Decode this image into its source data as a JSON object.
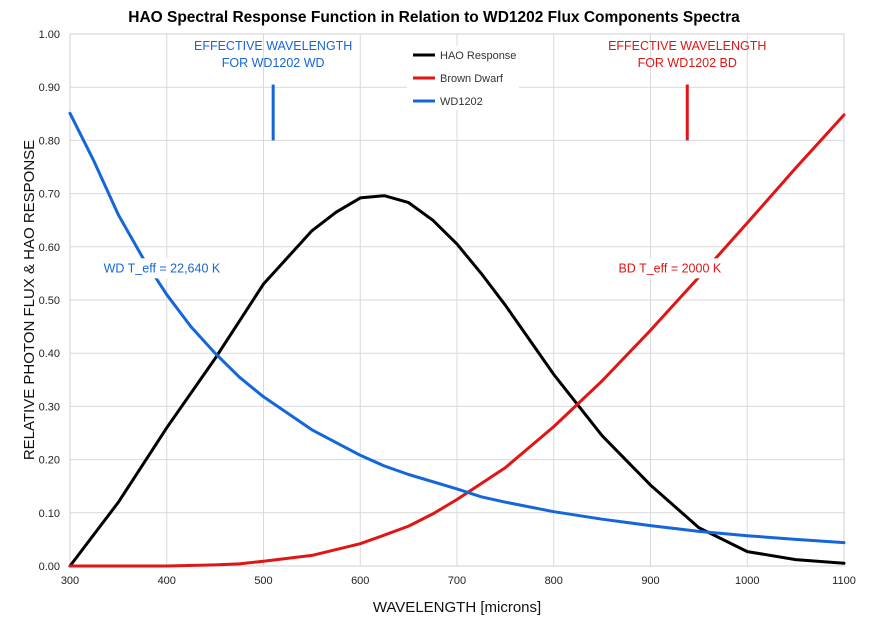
{
  "chart_data": {
    "type": "line",
    "title": "HAO Spectral Response Function in Relation to WD1202 Flux Components Spectra",
    "xlabel": "WAVELENGTH [microns]",
    "ylabel": "RELATIVE PHOTON FLUX & HAO RESPONSE",
    "xlim": [
      300,
      1100
    ],
    "ylim": [
      0,
      1
    ],
    "xticks": [
      "300",
      "400",
      "500",
      "600",
      "700",
      "800",
      "900",
      "1000",
      "1100"
    ],
    "yticks": [
      "0.00",
      "0.10",
      "0.20",
      "0.30",
      "0.40",
      "0.50",
      "0.60",
      "0.70",
      "0.80",
      "0.90",
      "1.00"
    ],
    "grid": true,
    "legend_position": "top-center",
    "series": [
      {
        "name": "HAO Response",
        "color": "#000000",
        "points": [
          [
            300,
            0.0
          ],
          [
            350,
            0.12
          ],
          [
            400,
            0.26
          ],
          [
            450,
            0.39
          ],
          [
            475,
            0.46
          ],
          [
            500,
            0.53
          ],
          [
            550,
            0.63
          ],
          [
            575,
            0.665
          ],
          [
            600,
            0.692
          ],
          [
            625,
            0.696
          ],
          [
            650,
            0.683
          ],
          [
            675,
            0.65
          ],
          [
            700,
            0.605
          ],
          [
            725,
            0.55
          ],
          [
            750,
            0.49
          ],
          [
            800,
            0.36
          ],
          [
            850,
            0.245
          ],
          [
            900,
            0.152
          ],
          [
            950,
            0.072
          ],
          [
            1000,
            0.027
          ],
          [
            1050,
            0.012
          ],
          [
            1100,
            0.005
          ]
        ]
      },
      {
        "name": "Brown Dwarf",
        "color": "#e01515",
        "points": [
          [
            300,
            0.0
          ],
          [
            400,
            0.0
          ],
          [
            450,
            0.002
          ],
          [
            475,
            0.004
          ],
          [
            500,
            0.009
          ],
          [
            550,
            0.02
          ],
          [
            600,
            0.042
          ],
          [
            625,
            0.058
          ],
          [
            650,
            0.075
          ],
          [
            675,
            0.098
          ],
          [
            700,
            0.125
          ],
          [
            750,
            0.185
          ],
          [
            800,
            0.262
          ],
          [
            850,
            0.348
          ],
          [
            900,
            0.443
          ],
          [
            950,
            0.543
          ],
          [
            1000,
            0.645
          ],
          [
            1050,
            0.748
          ],
          [
            1100,
            0.848
          ]
        ]
      },
      {
        "name": "WD1202",
        "color": "#1566d8",
        "points": [
          [
            300,
            0.851
          ],
          [
            325,
            0.76
          ],
          [
            350,
            0.66
          ],
          [
            375,
            0.58
          ],
          [
            400,
            0.51
          ],
          [
            425,
            0.45
          ],
          [
            450,
            0.4
          ],
          [
            475,
            0.355
          ],
          [
            500,
            0.318
          ],
          [
            550,
            0.256
          ],
          [
            600,
            0.208
          ],
          [
            625,
            0.188
          ],
          [
            650,
            0.172
          ],
          [
            700,
            0.145
          ],
          [
            725,
            0.13
          ],
          [
            750,
            0.12
          ],
          [
            800,
            0.102
          ],
          [
            850,
            0.088
          ],
          [
            900,
            0.076
          ],
          [
            950,
            0.065
          ],
          [
            1000,
            0.057
          ],
          [
            1050,
            0.05
          ],
          [
            1100,
            0.044
          ]
        ]
      }
    ],
    "annotations": [
      {
        "lines": [
          "EFFECTIVE WAVELENGTH",
          "FOR WD1202 WD"
        ],
        "color": "#1566d8",
        "x": 510,
        "y": 0.97,
        "anchor": "middle"
      },
      {
        "lines": [
          "EFFECTIVE WAVELENGTH",
          "FOR WD1202 BD"
        ],
        "color": "#e01515",
        "x": 938,
        "y": 0.97,
        "anchor": "middle"
      },
      {
        "lines": [
          "WD T_eff = 22,640 K"
        ],
        "color": "#1566d8",
        "x": 395,
        "y": 0.552,
        "anchor": "middle"
      },
      {
        "lines": [
          "BD T_eff = 2000 K"
        ],
        "color": "#e01515",
        "x": 920,
        "y": 0.552,
        "anchor": "middle"
      }
    ],
    "markers": [
      {
        "x": 510,
        "y_range": [
          0.8,
          0.905
        ],
        "color": "#1566d8"
      },
      {
        "x": 938,
        "y_range": [
          0.8,
          0.905
        ],
        "color": "#e01515"
      }
    ]
  }
}
